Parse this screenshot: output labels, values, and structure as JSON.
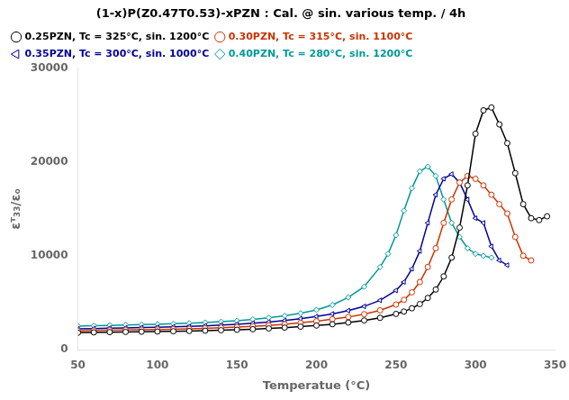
{
  "chart_data": {
    "type": "line",
    "title": "(1-x)P(Z0.47T0.53)-xPZN : Cal. @ sin. various temp. / 4h",
    "xlabel": "Temperatue (°C)",
    "ylabel": "εᵀ₃₃/εₒ",
    "xlim": [
      50,
      350
    ],
    "xticks": [
      50,
      100,
      150,
      200,
      250,
      300,
      350
    ],
    "ylim": [
      0,
      30000
    ],
    "yticks": [
      0,
      10000,
      20000,
      30000
    ],
    "grid": false,
    "legend": "upper left",
    "series": [
      {
        "name": "0.25PZN, Tc = 325°C, sin. 1200°C",
        "color": "#000000",
        "marker": "circle",
        "x": [
          50,
          60,
          70,
          80,
          90,
          100,
          110,
          120,
          130,
          140,
          150,
          160,
          170,
          180,
          190,
          200,
          210,
          220,
          230,
          240,
          250,
          255,
          260,
          265,
          270,
          275,
          280,
          285,
          290,
          295,
          300,
          305,
          310,
          315,
          320,
          325,
          330,
          335,
          340,
          345
        ],
        "values": [
          1800,
          1830,
          1860,
          1880,
          1900,
          1920,
          1950,
          1980,
          2010,
          2060,
          2110,
          2170,
          2250,
          2340,
          2440,
          2560,
          2700,
          2880,
          3100,
          3380,
          3800,
          4050,
          4400,
          4850,
          5500,
          6400,
          7800,
          9800,
          13000,
          17500,
          23000,
          25500,
          25800,
          24000,
          22000,
          18800,
          15500,
          14000,
          13800,
          14200
        ]
      },
      {
        "name": "0.30PZN, Tc = 315°C, sin. 1100°C",
        "color": "#cc3300",
        "marker": "circle",
        "x": [
          50,
          60,
          70,
          80,
          90,
          100,
          110,
          120,
          130,
          140,
          150,
          160,
          170,
          180,
          190,
          200,
          210,
          220,
          230,
          240,
          250,
          255,
          260,
          265,
          270,
          275,
          280,
          285,
          290,
          295,
          300,
          305,
          310,
          315,
          320,
          325,
          330,
          335
        ],
        "values": [
          2000,
          2030,
          2060,
          2090,
          2110,
          2140,
          2170,
          2210,
          2260,
          2320,
          2390,
          2480,
          2580,
          2700,
          2850,
          3020,
          3230,
          3470,
          3770,
          4180,
          4800,
          5300,
          6100,
          7200,
          8800,
          10800,
          13500,
          16000,
          17800,
          18500,
          18200,
          17500,
          16500,
          15500,
          14500,
          12000,
          10000,
          9500
        ]
      },
      {
        "name": "0.35PZN, Tc = 300°C, sin. 1000°C",
        "color": "#000099",
        "marker": "triangle-left",
        "x": [
          50,
          60,
          70,
          80,
          90,
          100,
          110,
          120,
          130,
          140,
          150,
          160,
          170,
          180,
          190,
          200,
          210,
          220,
          230,
          240,
          250,
          255,
          260,
          265,
          270,
          275,
          280,
          285,
          290,
          295,
          300,
          305,
          310,
          315,
          320
        ],
        "values": [
          2200,
          2240,
          2280,
          2310,
          2350,
          2380,
          2420,
          2470,
          2530,
          2610,
          2700,
          2810,
          2940,
          3100,
          3290,
          3520,
          3800,
          4150,
          4600,
          5250,
          6300,
          7200,
          8600,
          10500,
          13500,
          16500,
          18200,
          18700,
          17800,
          16000,
          14000,
          13500,
          11000,
          9500,
          9000
        ]
      },
      {
        "name": "0.40PZN, Tc = 280°C, sin. 1200°C",
        "color": "#009999",
        "marker": "diamond",
        "x": [
          50,
          60,
          70,
          80,
          90,
          100,
          110,
          120,
          130,
          140,
          150,
          160,
          170,
          180,
          190,
          200,
          210,
          220,
          230,
          240,
          245,
          250,
          255,
          260,
          265,
          270,
          275,
          280,
          285,
          290,
          295,
          300,
          305,
          310
        ],
        "values": [
          2500,
          2540,
          2580,
          2620,
          2660,
          2700,
          2750,
          2810,
          2880,
          2970,
          3080,
          3220,
          3390,
          3600,
          3870,
          4230,
          4750,
          5550,
          6700,
          8800,
          10200,
          12200,
          14800,
          17200,
          19000,
          19500,
          18500,
          16000,
          13500,
          12000,
          10800,
          10200,
          10000,
          9800
        ]
      }
    ]
  }
}
